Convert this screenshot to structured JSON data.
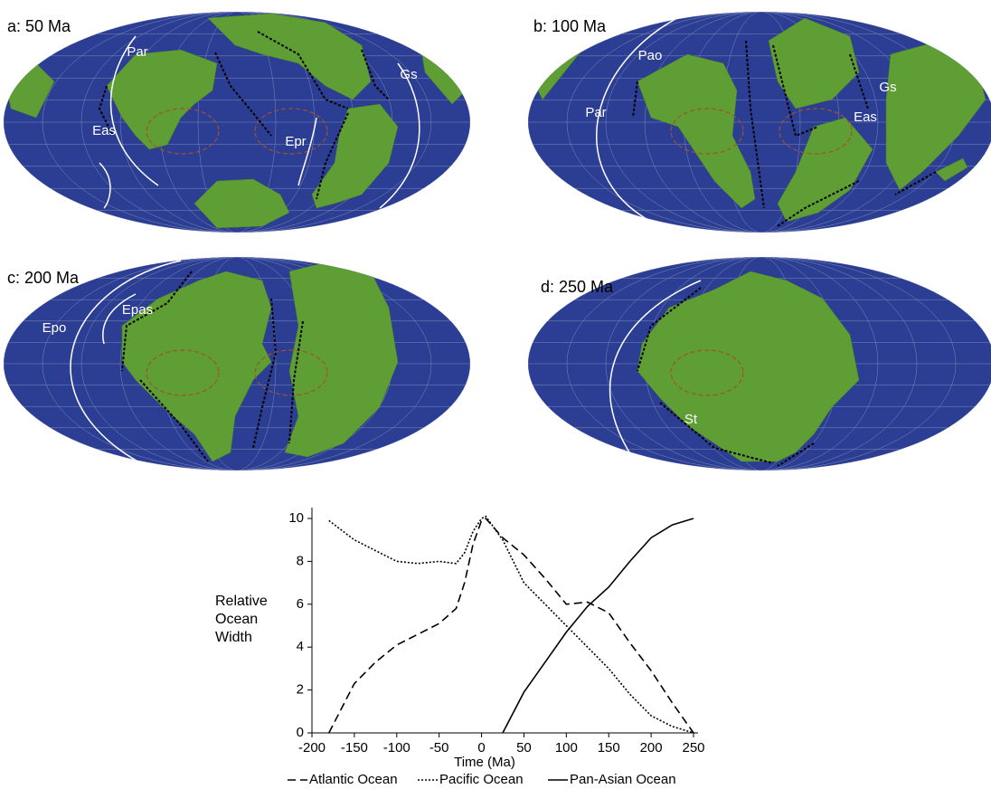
{
  "maps": [
    {
      "title": "a: 50 Ma",
      "labels": [
        "Par",
        "Eas",
        "Epr",
        "Gs"
      ]
    },
    {
      "title": "b: 100 Ma",
      "labels": [
        "Pao",
        "Par",
        "Gs",
        "Eas"
      ]
    },
    {
      "title": "c: 200 Ma",
      "labels": [
        "Epo",
        "Epas"
      ]
    },
    {
      "title": "d: 250 Ma",
      "labels": [
        "St"
      ]
    }
  ],
  "chart_data": {
    "type": "line",
    "xlabel": "Time (Ma)",
    "ylabel": "Relative Ocean Width",
    "x": [
      -180,
      -150,
      -125,
      -100,
      -75,
      -50,
      -30,
      -20,
      -10,
      0,
      5,
      25,
      50,
      75,
      100,
      125,
      150,
      175,
      200,
      225,
      250
    ],
    "series": [
      {
        "name": "Atlantic Ocean",
        "color": "#000000",
        "dash": "dashed",
        "values": [
          0,
          2.3,
          3.3,
          4.1,
          4.6,
          5.1,
          5.8,
          7,
          8.8,
          9.9,
          10,
          9.1,
          8.3,
          7.2,
          6.0,
          6.1,
          5.6,
          4.2,
          2.9,
          1.4,
          0
        ]
      },
      {
        "name": "Pacific Ocean",
        "color": "#000000",
        "dash": "dotted",
        "values": [
          9.9,
          9,
          8.5,
          8.0,
          7.9,
          8.0,
          7.9,
          8.4,
          9.4,
          10,
          10.1,
          9.0,
          7.0,
          6.0,
          5.0,
          4.0,
          3.0,
          1.8,
          0.8,
          0.3,
          0
        ]
      },
      {
        "name": "Pan-Asian Ocean",
        "color": "#000000",
        "dash": "solid",
        "values": [
          null,
          null,
          null,
          null,
          null,
          null,
          null,
          null,
          null,
          null,
          null,
          0,
          1.9,
          3.3,
          4.7,
          5.9,
          6.8,
          8.0,
          9.1,
          9.7,
          10
        ]
      }
    ],
    "xlim": [
      -200,
      250
    ],
    "xticks": [
      -200,
      -150,
      -100,
      -50,
      0,
      50,
      100,
      150,
      200,
      250
    ],
    "ylim": [
      0,
      10
    ],
    "yticks": [
      0,
      2,
      4,
      6,
      8,
      10
    ],
    "legend": "bottom"
  }
}
